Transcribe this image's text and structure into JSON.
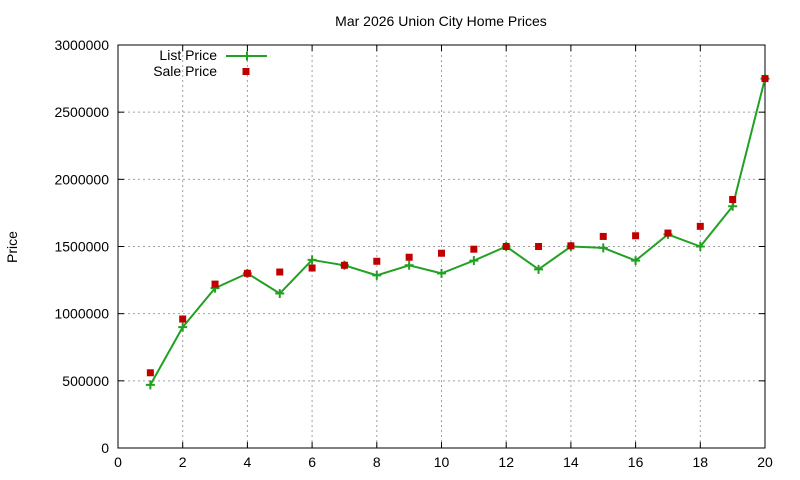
{
  "chart_data": {
    "type": "line",
    "title": "Mar 2026 Union City Home Prices",
    "xlabel": "",
    "ylabel": "Price",
    "xlim": [
      0,
      20
    ],
    "ylim": [
      0,
      3000000
    ],
    "x_ticks": [
      0,
      2,
      4,
      6,
      8,
      10,
      12,
      14,
      16,
      18,
      20
    ],
    "y_ticks": [
      0,
      500000,
      1000000,
      1500000,
      2000000,
      2500000,
      3000000
    ],
    "grid": true,
    "legend_position": "top-left",
    "x": [
      1,
      2,
      3,
      4,
      5,
      6,
      7,
      8,
      9,
      10,
      11,
      12,
      13,
      14,
      15,
      16,
      17,
      18,
      19,
      20
    ],
    "series": [
      {
        "name": "List Price",
        "style": "line-with-plus-markers",
        "color": "#22a022",
        "values": [
          470000,
          900000,
          1190000,
          1300000,
          1150000,
          1400000,
          1360000,
          1285000,
          1360000,
          1300000,
          1395000,
          1500000,
          1330000,
          1500000,
          1490000,
          1395000,
          1590000,
          1500000,
          1800000,
          2750000
        ]
      },
      {
        "name": "Sale Price",
        "style": "square-markers",
        "color": "#c00000",
        "values": [
          560000,
          960000,
          1220000,
          1300000,
          1310000,
          1340000,
          1360000,
          1390000,
          1420000,
          1450000,
          1480000,
          1500000,
          1500000,
          1505000,
          1575000,
          1580000,
          1600000,
          1650000,
          1850000,
          2750000
        ]
      }
    ]
  }
}
